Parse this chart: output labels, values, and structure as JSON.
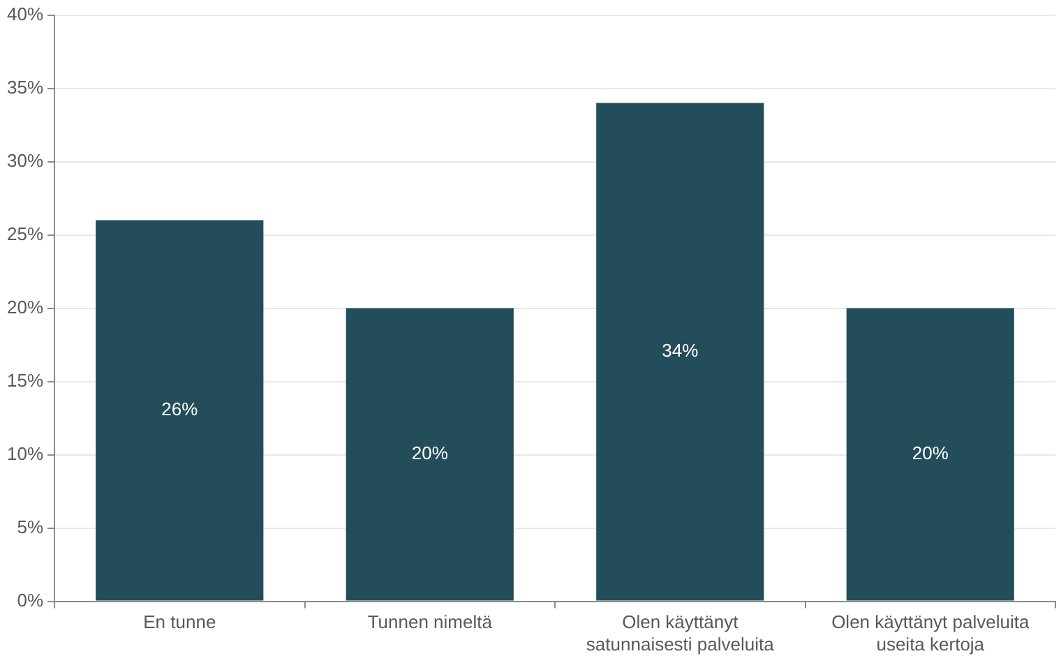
{
  "chart_data": {
    "type": "bar",
    "categories": [
      "En tunne",
      "Tunnen nimeltä",
      "Olen käyttänyt satunnaisesti palveluita",
      "Olen käyttänyt palveluita useita kertoja"
    ],
    "values": [
      26,
      20,
      34,
      20
    ],
    "color": "#234d5b",
    "ylim": [
      0,
      40
    ],
    "yticks": [
      {
        "value": 0,
        "label": "0%"
      },
      {
        "value": 5,
        "label": "5%"
      },
      {
        "value": 10,
        "label": "10%"
      },
      {
        "value": 15,
        "label": "15%"
      },
      {
        "value": 20,
        "label": "20%"
      },
      {
        "value": 25,
        "label": "25%"
      },
      {
        "value": 30,
        "label": "30%"
      },
      {
        "value": 35,
        "label": "35%"
      },
      {
        "value": 40,
        "label": "40%"
      }
    ],
    "value_labels": [
      "26%",
      "20%",
      "34%",
      "20%"
    ],
    "grid": "y",
    "legend": false
  }
}
